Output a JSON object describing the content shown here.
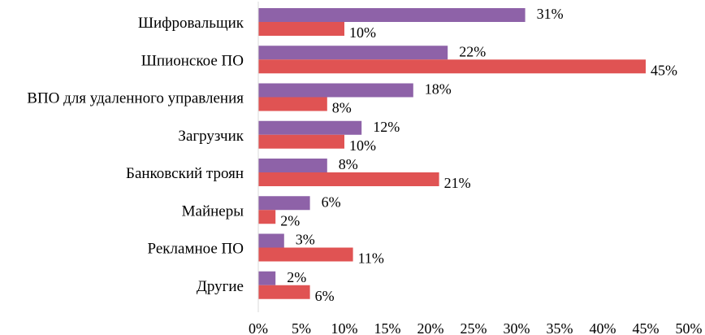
{
  "chart_data": {
    "type": "bar",
    "orientation": "horizontal",
    "title": "",
    "xlabel": "",
    "ylabel": "",
    "xlim": [
      0,
      50
    ],
    "x_ticks": [
      0,
      5,
      10,
      15,
      20,
      25,
      30,
      35,
      40,
      45,
      50
    ],
    "tick_suffix": "%",
    "grid": false,
    "legend": "none",
    "categories": [
      "Шифровальщик",
      "Шпионское ПО",
      "ВПО для удаленного управления",
      "Загрузчик",
      "Банковский троян",
      "Майнеры",
      "Рекламное ПО",
      "Другие"
    ],
    "series": [
      {
        "name": "series-1",
        "color": "#8e62a8",
        "values": [
          31,
          22,
          18,
          12,
          8,
          6,
          3,
          2
        ]
      },
      {
        "name": "series-2",
        "color": "#e05353",
        "values": [
          10,
          45,
          8,
          10,
          21,
          2,
          11,
          6
        ]
      }
    ]
  }
}
